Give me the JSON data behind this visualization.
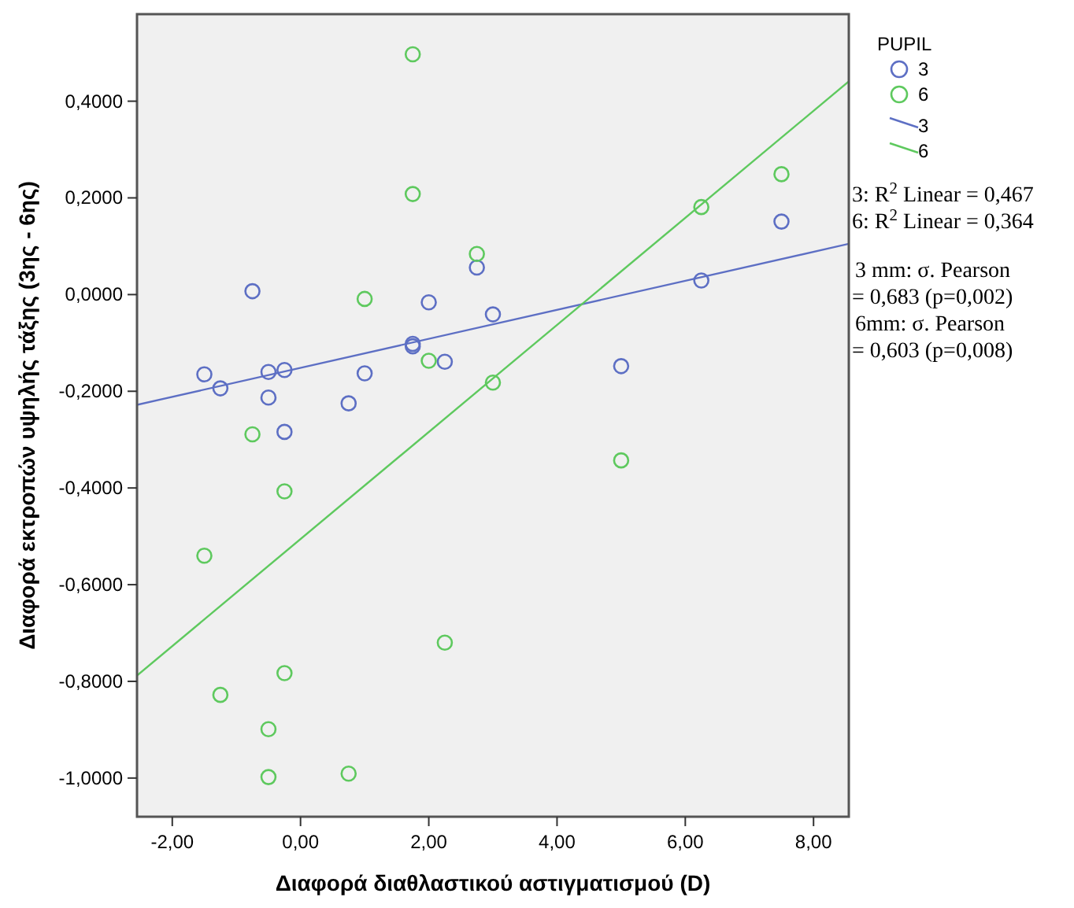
{
  "chart_data": {
    "type": "scatter",
    "xlabel": "Διαφορά διαθλαστικού αστιγματισμού (D)",
    "ylabel": "Διαφορά εκτροπών υψηλής τάξης (3ης - 6ης)",
    "legend_title": "PUPIL",
    "legend": "right",
    "marker": "circle",
    "xlim": [
      -2.55,
      8.55
    ],
    "ylim": [
      -1.08,
      0.58
    ],
    "xticks": [
      {
        "value": -2,
        "label": "-2,00"
      },
      {
        "value": 0,
        "label": "0,00"
      },
      {
        "value": 2,
        "label": "2,00"
      },
      {
        "value": 4,
        "label": "4,00"
      },
      {
        "value": 6,
        "label": "6,00"
      },
      {
        "value": 8,
        "label": "8,00"
      }
    ],
    "yticks": [
      {
        "value": -1,
        "label": "-1,0000"
      },
      {
        "value": -0.8,
        "label": "-0,8000"
      },
      {
        "value": -0.6,
        "label": "-0,6000"
      },
      {
        "value": -0.4,
        "label": "-0,4000"
      },
      {
        "value": -0.2,
        "label": "-0,2000"
      },
      {
        "value": 0,
        "label": "0,0000"
      },
      {
        "value": 0.2,
        "label": "0,2000"
      },
      {
        "value": 0.4,
        "label": "0,4000"
      }
    ],
    "series": [
      {
        "name": "3",
        "color": "#5d6fc4",
        "x": [
          -0.75,
          2.75,
          2.0,
          1.75,
          1.75,
          2.25,
          -1.5,
          -0.5,
          -0.25,
          -1.25,
          1.0,
          -0.5,
          0.75,
          -0.25,
          7.5,
          6.25,
          3.0,
          5.0
        ],
        "values": [
          0.007,
          0.056,
          -0.016,
          -0.102,
          -0.107,
          -0.139,
          -0.165,
          -0.16,
          -0.156,
          -0.194,
          -0.163,
          -0.213,
          -0.225,
          -0.284,
          0.151,
          0.029,
          -0.041,
          -0.148
        ]
      },
      {
        "name": "6",
        "color": "#5ec95e",
        "x": [
          1.75,
          1.75,
          2.75,
          1.0,
          2.0,
          -0.75,
          7.5,
          6.25,
          3.0,
          5.0,
          -0.25,
          -1.5,
          2.25,
          -0.25,
          -1.25,
          -0.5,
          -0.5,
          0.75
        ],
        "values": [
          0.497,
          0.208,
          0.084,
          -0.009,
          -0.137,
          -0.289,
          0.249,
          0.181,
          -0.182,
          -0.343,
          -0.407,
          -0.54,
          -0.72,
          -0.783,
          -0.828,
          -0.899,
          -0.998,
          -0.991
        ]
      },
      {
        "name": "3",
        "type": "line",
        "marker": "none",
        "color": "#5d6fc4",
        "x": [
          -2.55,
          8.55
        ],
        "values": [
          -0.228,
          0.105
        ]
      },
      {
        "name": "6",
        "type": "line",
        "marker": "none",
        "color": "#5ec95e",
        "x": [
          -2.55,
          8.55
        ],
        "values": [
          -0.788,
          0.441
        ]
      }
    ],
    "annotations": [
      "3: R$^{2}$ Linear = 0,467",
      "6: R$^{2}$ Linear = 0,364",
      "3 mm: σ. Pearson = 0,683 (p=0,002)",
      "6mm: σ. Pearson = 0,603 (p=0,008)"
    ]
  }
}
